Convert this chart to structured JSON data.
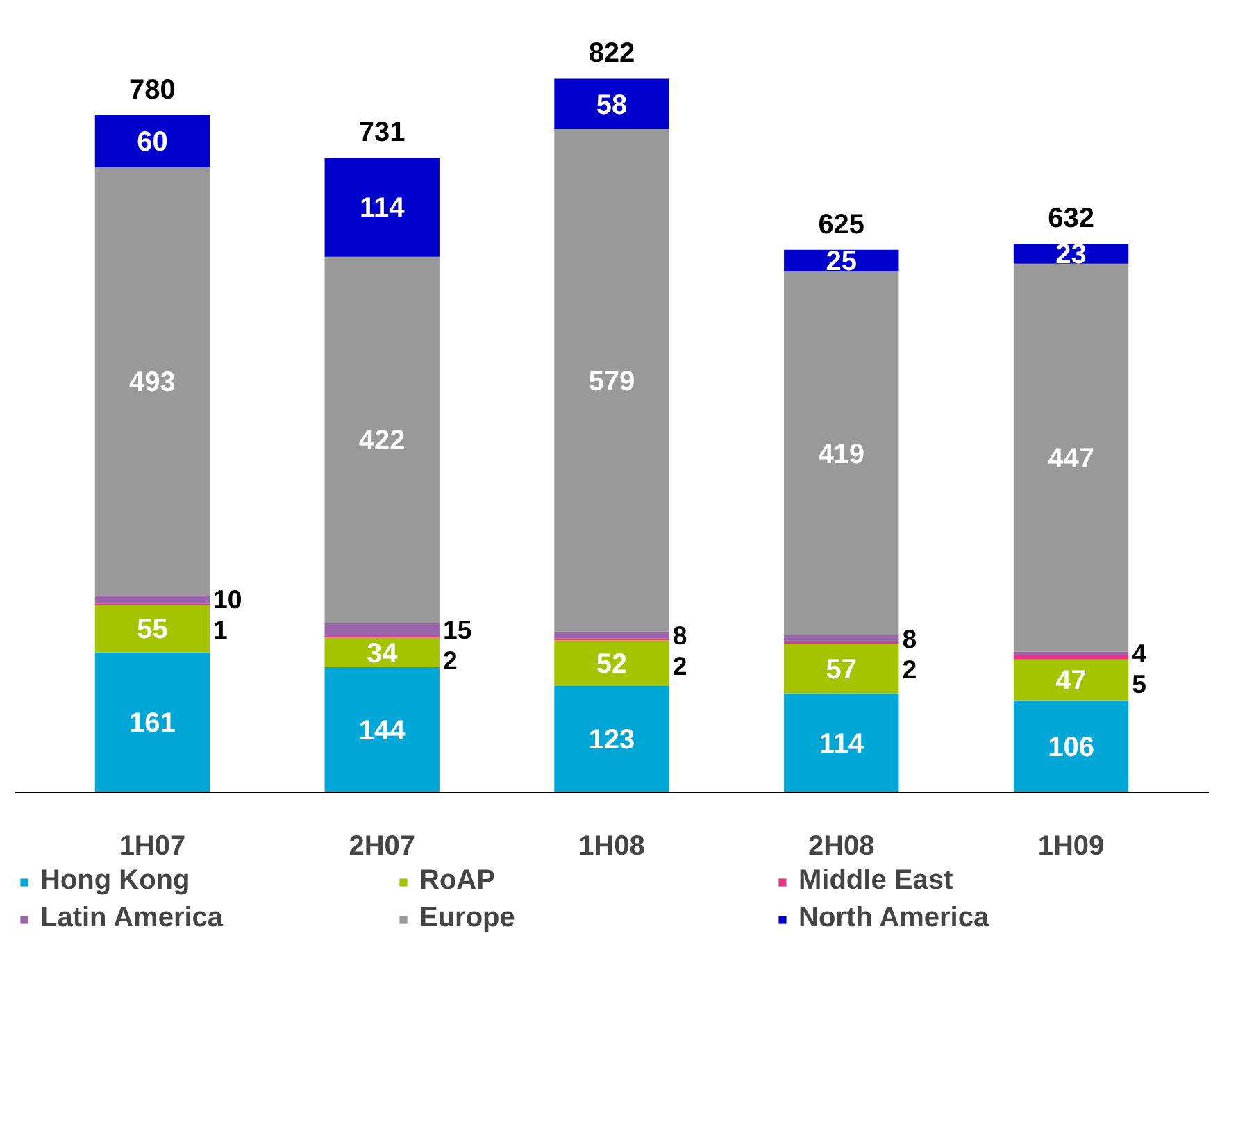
{
  "chart_data": {
    "type": "bar",
    "stacked": true,
    "data_labels": true,
    "legend": "bottom",
    "grid": false,
    "categories": [
      "1H07",
      "2H07",
      "1H08",
      "2H08",
      "1H09"
    ],
    "series": [
      {
        "name": "Hong Kong",
        "color": "#00a6d6",
        "values": [
          161,
          144,
          123,
          114,
          106
        ]
      },
      {
        "name": "RoAP",
        "color": "#a5c400",
        "values": [
          55,
          34,
          52,
          57,
          47
        ]
      },
      {
        "name": "Middle East",
        "color": "#e6348c",
        "values": [
          1,
          2,
          2,
          2,
          5
        ]
      },
      {
        "name": "Latin America",
        "color": "#9966aa",
        "values": [
          10,
          15,
          8,
          8,
          4
        ]
      },
      {
        "name": "Europe",
        "color": "#999999",
        "values": [
          493,
          422,
          579,
          419,
          447
        ]
      },
      {
        "name": "North America",
        "color": "#0000cc",
        "values": [
          60,
          114,
          58,
          25,
          23
        ]
      }
    ],
    "totals": [
      "780",
      "731",
      "822",
      "625",
      "632"
    ]
  }
}
